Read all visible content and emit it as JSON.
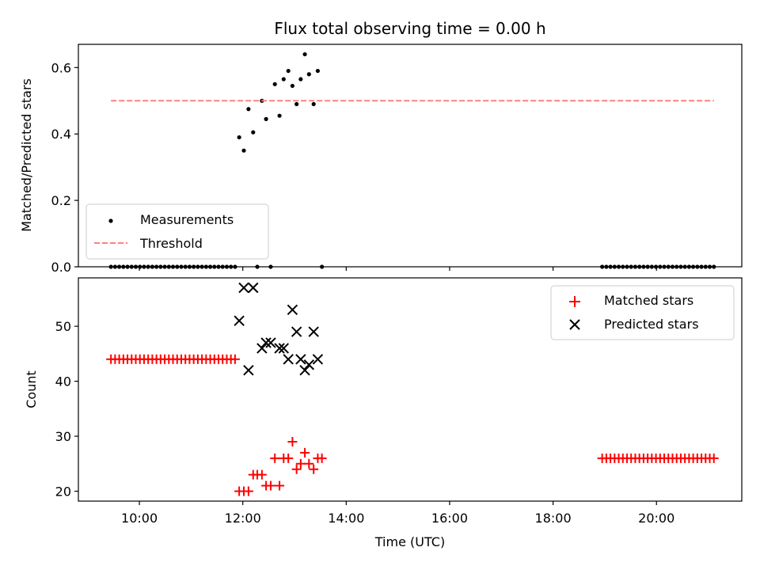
{
  "chart_data": [
    {
      "type": "scatter",
      "title": "Flux total observing time = 0.00 h",
      "xlabel": "",
      "ylabel": "Matched/Predicted stars",
      "xlim": [
        8.82,
        21.65
      ],
      "ylim": [
        0.0,
        0.67
      ],
      "yticks": [
        0.0,
        0.2,
        0.4,
        0.6
      ],
      "ytick_labels": [
        "0.0",
        "0.2",
        "0.4",
        "0.6"
      ],
      "xticks": [
        10,
        12,
        14,
        16,
        18,
        20
      ],
      "grid": false,
      "legend_position": "lower-left",
      "series": [
        {
          "name": "Measurements",
          "kind": "scatter",
          "color": "#000000",
          "x": [
            9.45,
            9.53,
            9.61,
            9.69,
            9.77,
            9.85,
            9.93,
            10.01,
            10.09,
            10.17,
            10.25,
            10.33,
            10.41,
            10.49,
            10.57,
            10.65,
            10.73,
            10.81,
            10.89,
            10.97,
            11.05,
            11.13,
            11.21,
            11.29,
            11.37,
            11.45,
            11.53,
            11.61,
            11.69,
            11.77,
            11.85,
            11.93,
            12.02,
            12.11,
            12.2,
            12.28,
            12.37,
            12.45,
            12.54,
            12.62,
            12.71,
            12.79,
            12.88,
            12.96,
            13.04,
            13.12,
            13.2,
            13.28,
            13.37,
            13.45,
            13.53,
            18.95,
            19.03,
            19.11,
            19.19,
            19.27,
            19.35,
            19.43,
            19.51,
            19.59,
            19.67,
            19.75,
            19.83,
            19.91,
            19.99,
            20.07,
            20.15,
            20.23,
            20.31,
            20.39,
            20.47,
            20.55,
            20.63,
            20.71,
            20.79,
            20.87,
            20.95,
            21.03,
            21.11
          ],
          "y": [
            0,
            0,
            0,
            0,
            0,
            0,
            0,
            0,
            0,
            0,
            0,
            0,
            0,
            0,
            0,
            0,
            0,
            0,
            0,
            0,
            0,
            0,
            0,
            0,
            0,
            0,
            0,
            0,
            0,
            0,
            0,
            0.39,
            0.35,
            0.475,
            0.405,
            0,
            0.5,
            0.445,
            0,
            0.55,
            0.455,
            0.565,
            0.59,
            0.545,
            0.49,
            0.565,
            0.64,
            0.58,
            0.49,
            0.59,
            0,
            0,
            0,
            0,
            0,
            0,
            0,
            0,
            0,
            0,
            0,
            0,
            0,
            0,
            0,
            0,
            0,
            0,
            0,
            0,
            0,
            0,
            0,
            0,
            0,
            0,
            0,
            0,
            0
          ]
        },
        {
          "name": "Threshold",
          "kind": "dashed-line",
          "color": "#ff8080",
          "x": [
            9.45,
            21.11
          ],
          "y": [
            0.5,
            0.5
          ]
        }
      ]
    },
    {
      "type": "scatter",
      "title": "",
      "xlabel": "Time (UTC)",
      "ylabel": "Count",
      "xlim": [
        8.82,
        21.65
      ],
      "ylim": [
        18.2,
        58.8
      ],
      "yticks": [
        20,
        30,
        40,
        50
      ],
      "ytick_labels": [
        "20",
        "30",
        "40",
        "50"
      ],
      "xticks": [
        10,
        12,
        14,
        16,
        18,
        20
      ],
      "xtick_labels": [
        "10:00",
        "12:00",
        "14:00",
        "16:00",
        "18:00",
        "20:00"
      ],
      "grid": false,
      "legend_position": "top-right",
      "series": [
        {
          "name": "Matched stars",
          "kind": "plus",
          "color": "#ff0000",
          "x": [
            9.45,
            9.53,
            9.61,
            9.69,
            9.77,
            9.85,
            9.93,
            10.01,
            10.09,
            10.17,
            10.25,
            10.33,
            10.41,
            10.49,
            10.57,
            10.65,
            10.73,
            10.81,
            10.89,
            10.97,
            11.05,
            11.13,
            11.21,
            11.29,
            11.37,
            11.45,
            11.53,
            11.61,
            11.69,
            11.77,
            11.85,
            11.93,
            12.02,
            12.11,
            12.2,
            12.28,
            12.37,
            12.45,
            12.54,
            12.62,
            12.71,
            12.79,
            12.88,
            12.96,
            13.04,
            13.12,
            13.2,
            13.28,
            13.37,
            13.45,
            13.53,
            18.95,
            19.03,
            19.11,
            19.19,
            19.27,
            19.35,
            19.43,
            19.51,
            19.59,
            19.67,
            19.75,
            19.83,
            19.91,
            19.99,
            20.07,
            20.15,
            20.23,
            20.31,
            20.39,
            20.47,
            20.55,
            20.63,
            20.71,
            20.79,
            20.87,
            20.95,
            21.03,
            21.11
          ],
          "y": [
            44,
            44,
            44,
            44,
            44,
            44,
            44,
            44,
            44,
            44,
            44,
            44,
            44,
            44,
            44,
            44,
            44,
            44,
            44,
            44,
            44,
            44,
            44,
            44,
            44,
            44,
            44,
            44,
            44,
            44,
            44,
            20,
            20,
            20,
            23,
            23,
            23,
            21,
            21,
            26,
            21,
            26,
            26,
            29,
            24,
            25,
            27,
            25,
            24,
            26,
            26,
            26,
            26,
            26,
            26,
            26,
            26,
            26,
            26,
            26,
            26,
            26,
            26,
            26,
            26,
            26,
            26,
            26,
            26,
            26,
            26,
            26,
            26,
            26,
            26,
            26,
            26,
            26,
            26
          ]
        },
        {
          "name": "Predicted stars",
          "kind": "x",
          "color": "#000000",
          "x": [
            11.93,
            12.02,
            12.11,
            12.2,
            12.37,
            12.45,
            12.54,
            12.71,
            12.79,
            12.88,
            12.96,
            13.04,
            13.12,
            13.2,
            13.28,
            13.37,
            13.45
          ],
          "y": [
            51,
            57,
            42,
            57,
            46,
            47,
            47,
            46,
            46,
            44,
            53,
            49,
            44,
            42,
            43,
            49,
            44
          ]
        }
      ]
    }
  ]
}
